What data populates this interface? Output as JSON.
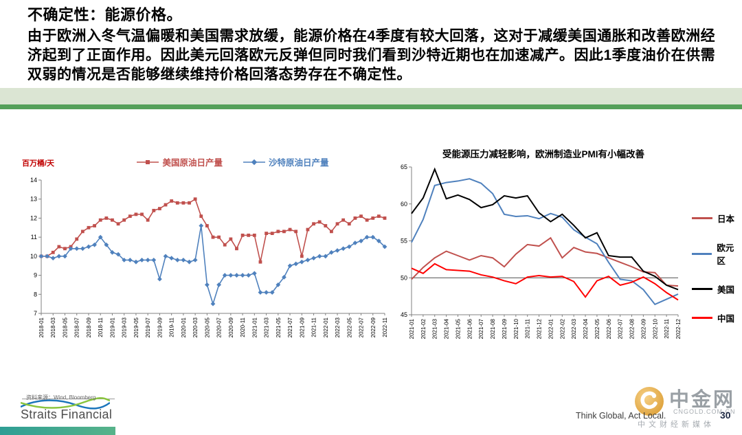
{
  "header": {
    "title": "不确定性：能源价格。",
    "body": "由于欧洲入冬气温偏暖和美国需求放缓，能源价格在4季度有较大回落，这对于减缓美国通胀和改善欧洲经济起到了正面作用。因此美元回落欧元反弹但同时我们看到沙特近期也在加速减产。因此1季度油价在供需双弱的情况是否能够继续维持价格回落态势存在不确定性。"
  },
  "chart_data": [
    {
      "type": "line",
      "title": "",
      "ylabel": "百万桶/天",
      "ylim": [
        7,
        14
      ],
      "yticks": [
        7,
        8,
        9,
        10,
        11,
        12,
        13,
        14
      ],
      "xtick_every": 2,
      "legend_position": "top",
      "grid": false,
      "x": [
        "2018-01",
        "2018-02",
        "2018-03",
        "2018-04",
        "2018-05",
        "2018-06",
        "2018-07",
        "2018-08",
        "2018-09",
        "2018-10",
        "2018-11",
        "2018-12",
        "2019-01",
        "2019-02",
        "2019-03",
        "2019-04",
        "2019-05",
        "2019-06",
        "2019-07",
        "2019-08",
        "2019-09",
        "2019-10",
        "2019-11",
        "2019-12",
        "2020-01",
        "2020-02",
        "2020-03",
        "2020-04",
        "2020-05",
        "2020-06",
        "2020-07",
        "2020-08",
        "2020-09",
        "2020-10",
        "2020-11",
        "2020-12",
        "2021-01",
        "2021-02",
        "2021-03",
        "2021-04",
        "2021-05",
        "2021-06",
        "2021-07",
        "2021-08",
        "2021-09",
        "2021-10",
        "2021-11",
        "2021-12",
        "2022-01",
        "2022-02",
        "2022-03",
        "2022-04",
        "2022-05",
        "2022-06",
        "2022-07",
        "2022-08",
        "2022-09",
        "2022-10",
        "2022-11"
      ],
      "series": [
        {
          "name": "美国原油日产量",
          "color": "#C0504D",
          "marker": "square",
          "values": [
            10.0,
            10.0,
            10.2,
            10.5,
            10.4,
            10.5,
            10.9,
            11.3,
            11.5,
            11.6,
            11.9,
            12.0,
            11.9,
            11.7,
            11.9,
            12.1,
            12.2,
            12.2,
            11.9,
            12.4,
            12.5,
            12.7,
            12.9,
            12.8,
            12.8,
            12.8,
            13.0,
            12.1,
            11.6,
            11.0,
            11.0,
            10.6,
            10.9,
            10.4,
            11.1,
            11.1,
            11.1,
            9.7,
            11.2,
            11.2,
            11.3,
            11.3,
            11.4,
            11.3,
            10.0,
            11.4,
            11.7,
            11.8,
            11.6,
            11.3,
            11.7,
            11.9,
            11.7,
            12.0,
            12.1,
            11.9,
            12.0,
            12.1,
            12.0
          ]
        },
        {
          "name": "沙特原油日产量",
          "color": "#4F81BD",
          "marker": "diamond",
          "values": [
            10.0,
            10.0,
            9.9,
            10.0,
            10.0,
            10.4,
            10.4,
            10.4,
            10.5,
            10.6,
            11.0,
            10.6,
            10.2,
            10.1,
            9.8,
            9.8,
            9.7,
            9.8,
            9.8,
            9.8,
            8.8,
            10.0,
            9.9,
            9.8,
            9.8,
            9.7,
            9.8,
            11.6,
            8.5,
            7.5,
            8.5,
            9.0,
            9.0,
            9.0,
            9.0,
            9.0,
            9.1,
            8.1,
            8.1,
            8.1,
            8.5,
            8.9,
            9.5,
            9.6,
            9.7,
            9.8,
            9.9,
            10.0,
            10.0,
            10.2,
            10.3,
            10.4,
            10.5,
            10.7,
            10.8,
            11.0,
            11.0,
            10.8,
            10.5
          ]
        }
      ]
    },
    {
      "type": "line",
      "title": "受能源压力减轻影响，欧洲制造业PMI有小幅改善",
      "ylabel": "",
      "ylim": [
        45,
        65
      ],
      "yticks": [
        45,
        50,
        55,
        60,
        65
      ],
      "refline": 50,
      "xtick_every": 1,
      "legend_position": "right",
      "grid": false,
      "x": [
        "2021-01",
        "2021-02",
        "2021-03",
        "2021-04",
        "2021-05",
        "2021-06",
        "2021-07",
        "2021-08",
        "2021-09",
        "2021-10",
        "2021-11",
        "2021-12",
        "2022-01",
        "2022-02",
        "2022-03",
        "2022-04",
        "2022-05",
        "2022-06",
        "2022-07",
        "2022-08",
        "2022-09",
        "2022-10",
        "2022-11",
        "2022-12"
      ],
      "series": [
        {
          "name": "日本",
          "color": "#C0504D",
          "values": [
            49.8,
            51.4,
            52.7,
            53.6,
            53.0,
            52.4,
            53.0,
            52.7,
            51.5,
            53.2,
            54.5,
            54.3,
            55.4,
            52.7,
            54.1,
            53.5,
            53.3,
            52.7,
            52.1,
            51.5,
            50.8,
            50.7,
            49.0,
            48.9
          ]
        },
        {
          "name": "欧元区",
          "color": "#4F81BD",
          "values": [
            54.8,
            57.9,
            62.5,
            62.9,
            63.1,
            63.4,
            62.8,
            61.4,
            58.6,
            58.3,
            58.4,
            58.0,
            58.7,
            58.2,
            56.5,
            55.5,
            54.6,
            52.1,
            49.8,
            49.6,
            48.4,
            46.4,
            47.1,
            47.8
          ]
        },
        {
          "name": "美国",
          "color": "#000000",
          "values": [
            58.7,
            60.8,
            64.7,
            60.7,
            61.2,
            60.6,
            59.5,
            59.9,
            61.1,
            60.8,
            61.1,
            58.8,
            57.6,
            58.6,
            57.1,
            55.4,
            56.1,
            53.0,
            52.8,
            52.8,
            50.9,
            50.2,
            49.0,
            48.4
          ]
        },
        {
          "name": "中国",
          "color": "#FF0000",
          "values": [
            51.3,
            50.6,
            51.9,
            51.1,
            51.0,
            50.9,
            50.4,
            50.1,
            49.6,
            49.2,
            50.1,
            50.3,
            50.1,
            50.2,
            49.5,
            47.4,
            49.6,
            50.2,
            49.0,
            49.4,
            50.1,
            49.2,
            48.0,
            47.0
          ]
        }
      ]
    }
  ],
  "footer": {
    "source": "资料来源：Wind, Bloomberg",
    "logo_text": "Straits Financial",
    "tagline": "Think Global, Act Local.",
    "page_number": "30",
    "watermark": {
      "name": "中金网",
      "domain": "CNGOLD.COM.CN",
      "slogan": "中文财经新媒体"
    }
  },
  "colors": {
    "band_light": "#dbe5d3",
    "band_dark": "#55a05a",
    "us_oil": "#C0504D",
    "saudi_oil": "#4F81BD",
    "ylabel_red": "#c00000"
  }
}
